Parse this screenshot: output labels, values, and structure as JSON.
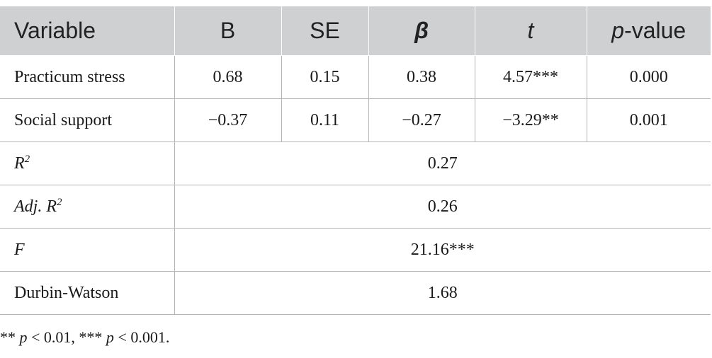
{
  "header": {
    "variable": "Variable",
    "b": "B",
    "se": "SE",
    "beta": "β",
    "t": "t",
    "p_italic": "p",
    "p_rest": "-value"
  },
  "rows": [
    {
      "variable": "Practicum stress",
      "b": "0.68",
      "se": "0.15",
      "beta": "0.38",
      "t": "4.57***",
      "p": "0.000"
    },
    {
      "variable": "Social support",
      "b": "−0.37",
      "se": "0.11",
      "beta": "−0.27",
      "t": "−3.29**",
      "p": "0.001"
    }
  ],
  "stats": {
    "r2": {
      "label": "R",
      "sup": "2",
      "value": "0.27"
    },
    "adj_r2": {
      "label": "Adj. R",
      "sup": "2",
      "value": "0.26"
    },
    "f": {
      "label": "F",
      "value": "21.16***"
    },
    "dw": {
      "label": "Durbin-Watson",
      "value": "1.68"
    }
  },
  "footnote": {
    "part1": "** ",
    "p1": "p",
    "part2": " < 0.01, *** ",
    "p2": "p",
    "part3": " < 0.001."
  }
}
